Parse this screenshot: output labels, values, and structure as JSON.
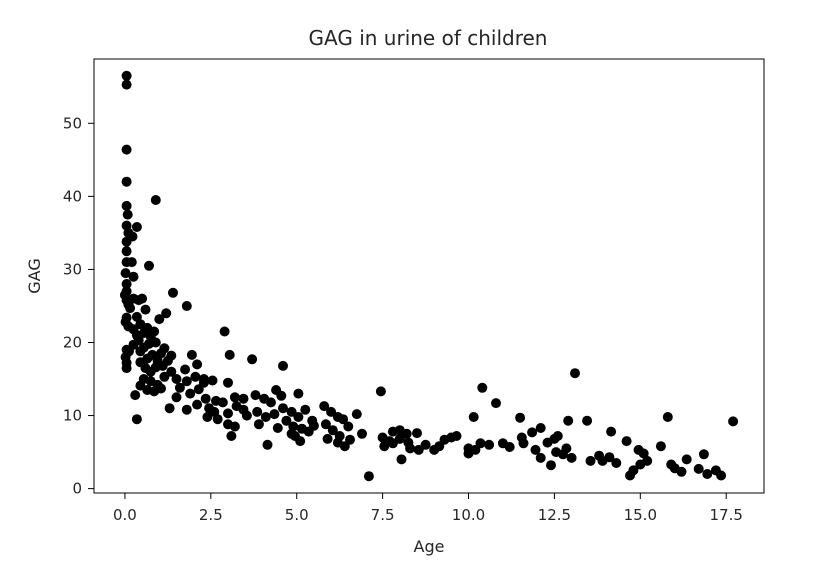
{
  "chart_data": {
    "type": "scatter",
    "title": "GAG in urine of children",
    "xlabel": "Age",
    "ylabel": "GAG",
    "xlim": [
      -0.9,
      18.6
    ],
    "ylim": [
      -0.6,
      58.8
    ],
    "xticks": [
      0.0,
      2.5,
      5.0,
      7.5,
      10.0,
      12.5,
      15.0,
      17.5
    ],
    "xtick_labels": [
      "0.0",
      "2.5",
      "5.0",
      "7.5",
      "10.0",
      "12.5",
      "15.0",
      "17.5"
    ],
    "yticks": [
      0,
      10,
      20,
      30,
      40,
      50
    ],
    "ytick_labels": [
      "0",
      "10",
      "20",
      "30",
      "40",
      "50"
    ],
    "grid": false,
    "marker_color": "#000000",
    "points": [
      [
        0.05,
        56.5
      ],
      [
        0.05,
        55.3
      ],
      [
        0.05,
        46.4
      ],
      [
        0.05,
        42.0
      ],
      [
        0.05,
        38.7
      ],
      [
        0.08,
        37.5
      ],
      [
        0.05,
        36.0
      ],
      [
        0.1,
        35.0
      ],
      [
        0.05,
        33.8
      ],
      [
        0.05,
        32.5
      ],
      [
        0.05,
        31.0
      ],
      [
        0.02,
        29.5
      ],
      [
        0.05,
        28.0
      ],
      [
        0.05,
        27.0
      ],
      [
        0.0,
        26.5
      ],
      [
        0.05,
        25.8
      ],
      [
        0.1,
        25.2
      ],
      [
        0.15,
        24.7
      ],
      [
        0.05,
        23.4
      ],
      [
        0.02,
        22.8
      ],
      [
        0.1,
        22.2
      ],
      [
        0.05,
        19.0
      ],
      [
        0.02,
        18.0
      ],
      [
        0.05,
        17.2
      ],
      [
        0.05,
        16.5
      ],
      [
        0.12,
        18.8
      ],
      [
        0.22,
        34.5
      ],
      [
        0.2,
        31.0
      ],
      [
        0.35,
        35.8
      ],
      [
        0.25,
        29.0
      ],
      [
        0.25,
        26.0
      ],
      [
        0.4,
        25.8
      ],
      [
        0.5,
        26.0
      ],
      [
        0.6,
        24.5
      ],
      [
        0.35,
        23.5
      ],
      [
        0.45,
        22.5
      ],
      [
        0.25,
        21.8
      ],
      [
        0.35,
        21.0
      ],
      [
        0.55,
        21.3
      ],
      [
        0.65,
        22.0
      ],
      [
        0.75,
        20.8
      ],
      [
        0.85,
        21.5
      ],
      [
        0.4,
        20.3
      ],
      [
        0.25,
        19.7
      ],
      [
        0.45,
        18.8
      ],
      [
        0.55,
        19.3
      ],
      [
        0.7,
        19.8
      ],
      [
        0.9,
        20.0
      ],
      [
        0.45,
        17.3
      ],
      [
        0.65,
        17.8
      ],
      [
        0.8,
        18.3
      ],
      [
        0.95,
        17.5
      ],
      [
        1.05,
        18.5
      ],
      [
        1.15,
        19.2
      ],
      [
        0.6,
        16.5
      ],
      [
        0.75,
        16.0
      ],
      [
        0.9,
        16.6
      ],
      [
        1.1,
        16.8
      ],
      [
        1.25,
        17.5
      ],
      [
        1.35,
        18.2
      ],
      [
        0.55,
        15.0
      ],
      [
        0.75,
        14.7
      ],
      [
        0.95,
        14.2
      ],
      [
        1.15,
        15.3
      ],
      [
        1.35,
        16.0
      ],
      [
        0.45,
        14.1
      ],
      [
        0.65,
        13.5
      ],
      [
        0.85,
        13.3
      ],
      [
        1.05,
        13.7
      ],
      [
        0.3,
        12.8
      ],
      [
        0.35,
        9.5
      ],
      [
        0.7,
        30.5
      ],
      [
        0.9,
        39.5
      ],
      [
        1.0,
        23.2
      ],
      [
        1.2,
        24.0
      ],
      [
        1.4,
        26.8
      ],
      [
        1.8,
        25.0
      ],
      [
        1.3,
        11.0
      ],
      [
        1.5,
        12.5
      ],
      [
        1.6,
        13.8
      ],
      [
        1.5,
        15.0
      ],
      [
        1.75,
        16.3
      ],
      [
        1.95,
        18.3
      ],
      [
        2.1,
        17.0
      ],
      [
        2.3,
        15.0
      ],
      [
        1.8,
        14.7
      ],
      [
        2.05,
        15.3
      ],
      [
        2.3,
        14.5
      ],
      [
        2.55,
        14.8
      ],
      [
        1.9,
        13.0
      ],
      [
        2.15,
        13.6
      ],
      [
        2.35,
        12.3
      ],
      [
        2.65,
        12.0
      ],
      [
        2.1,
        11.5
      ],
      [
        2.45,
        11.0
      ],
      [
        1.8,
        10.8
      ],
      [
        2.6,
        10.5
      ],
      [
        2.85,
        11.8
      ],
      [
        2.4,
        9.8
      ],
      [
        2.7,
        9.5
      ],
      [
        3.0,
        10.3
      ],
      [
        2.9,
        21.5
      ],
      [
        3.05,
        18.3
      ],
      [
        3.0,
        14.5
      ],
      [
        3.2,
        12.5
      ],
      [
        3.45,
        12.3
      ],
      [
        3.25,
        11.3
      ],
      [
        3.55,
        10.0
      ],
      [
        3.2,
        8.5
      ],
      [
        3.0,
        8.8
      ],
      [
        3.1,
        7.2
      ],
      [
        3.45,
        10.8
      ],
      [
        3.7,
        17.7
      ],
      [
        3.8,
        12.8
      ],
      [
        4.05,
        12.3
      ],
      [
        4.25,
        11.8
      ],
      [
        4.4,
        13.5
      ],
      [
        4.55,
        12.7
      ],
      [
        3.85,
        10.5
      ],
      [
        4.1,
        9.8
      ],
      [
        4.35,
        10.2
      ],
      [
        4.6,
        11.0
      ],
      [
        3.9,
        8.8
      ],
      [
        4.15,
        6.0
      ],
      [
        4.45,
        8.3
      ],
      [
        4.7,
        9.3
      ],
      [
        4.6,
        16.8
      ],
      [
        4.85,
        10.5
      ],
      [
        5.05,
        9.8
      ],
      [
        5.25,
        10.8
      ],
      [
        5.45,
        9.3
      ],
      [
        4.9,
        8.5
      ],
      [
        5.15,
        8.2
      ],
      [
        5.35,
        7.8
      ],
      [
        4.95,
        7.2
      ],
      [
        5.1,
        6.5
      ],
      [
        4.85,
        7.5
      ],
      [
        5.5,
        8.6
      ],
      [
        5.05,
        13.0
      ],
      [
        5.8,
        11.3
      ],
      [
        6.0,
        10.5
      ],
      [
        6.2,
        9.8
      ],
      [
        6.35,
        9.5
      ],
      [
        6.5,
        8.5
      ],
      [
        5.85,
        8.8
      ],
      [
        6.05,
        8.0
      ],
      [
        6.25,
        7.2
      ],
      [
        5.9,
        6.8
      ],
      [
        6.2,
        6.3
      ],
      [
        6.4,
        5.8
      ],
      [
        6.55,
        6.7
      ],
      [
        6.75,
        10.2
      ],
      [
        6.9,
        7.5
      ],
      [
        7.1,
        1.7
      ],
      [
        7.45,
        13.3
      ],
      [
        7.5,
        7.0
      ],
      [
        7.7,
        6.5
      ],
      [
        7.8,
        7.8
      ],
      [
        8.0,
        8.0
      ],
      [
        8.2,
        7.5
      ],
      [
        7.55,
        5.8
      ],
      [
        7.8,
        6.2
      ],
      [
        8.0,
        6.8
      ],
      [
        8.25,
        6.3
      ],
      [
        8.5,
        7.6
      ],
      [
        8.05,
        4.0
      ],
      [
        8.3,
        5.5
      ],
      [
        8.55,
        5.3
      ],
      [
        8.75,
        6.0
      ],
      [
        9.0,
        5.3
      ],
      [
        9.15,
        5.8
      ],
      [
        9.3,
        6.7
      ],
      [
        9.5,
        7.0
      ],
      [
        9.65,
        7.2
      ],
      [
        10.0,
        5.5
      ],
      [
        10.15,
        9.8
      ],
      [
        10.0,
        4.8
      ],
      [
        10.2,
        5.3
      ],
      [
        10.35,
        6.2
      ],
      [
        10.4,
        13.8
      ],
      [
        10.6,
        6.0
      ],
      [
        10.8,
        11.7
      ],
      [
        11.0,
        6.2
      ],
      [
        11.2,
        5.7
      ],
      [
        11.5,
        9.7
      ],
      [
        11.55,
        7.0
      ],
      [
        11.6,
        6.2
      ],
      [
        11.85,
        7.7
      ],
      [
        12.1,
        8.3
      ],
      [
        11.95,
        5.3
      ],
      [
        12.1,
        4.2
      ],
      [
        12.3,
        6.3
      ],
      [
        12.5,
        6.8
      ],
      [
        12.6,
        7.2
      ],
      [
        12.4,
        3.2
      ],
      [
        12.55,
        5.0
      ],
      [
        12.75,
        4.7
      ],
      [
        12.85,
        5.5
      ],
      [
        12.9,
        9.3
      ],
      [
        13.0,
        4.2
      ],
      [
        13.1,
        15.8
      ],
      [
        13.45,
        9.3
      ],
      [
        13.55,
        3.8
      ],
      [
        13.8,
        4.5
      ],
      [
        13.9,
        3.8
      ],
      [
        14.1,
        4.3
      ],
      [
        14.15,
        7.8
      ],
      [
        14.3,
        3.5
      ],
      [
        14.6,
        6.5
      ],
      [
        14.7,
        1.8
      ],
      [
        14.8,
        2.5
      ],
      [
        14.95,
        5.3
      ],
      [
        15.0,
        3.3
      ],
      [
        15.1,
        4.8
      ],
      [
        15.2,
        3.8
      ],
      [
        15.6,
        5.8
      ],
      [
        15.8,
        9.8
      ],
      [
        15.9,
        3.3
      ],
      [
        16.0,
        2.8
      ],
      [
        16.2,
        2.3
      ],
      [
        16.35,
        4.0
      ],
      [
        16.7,
        2.7
      ],
      [
        16.85,
        4.7
      ],
      [
        16.95,
        2.0
      ],
      [
        17.2,
        2.5
      ],
      [
        17.35,
        1.8
      ],
      [
        17.7,
        9.2
      ]
    ]
  }
}
